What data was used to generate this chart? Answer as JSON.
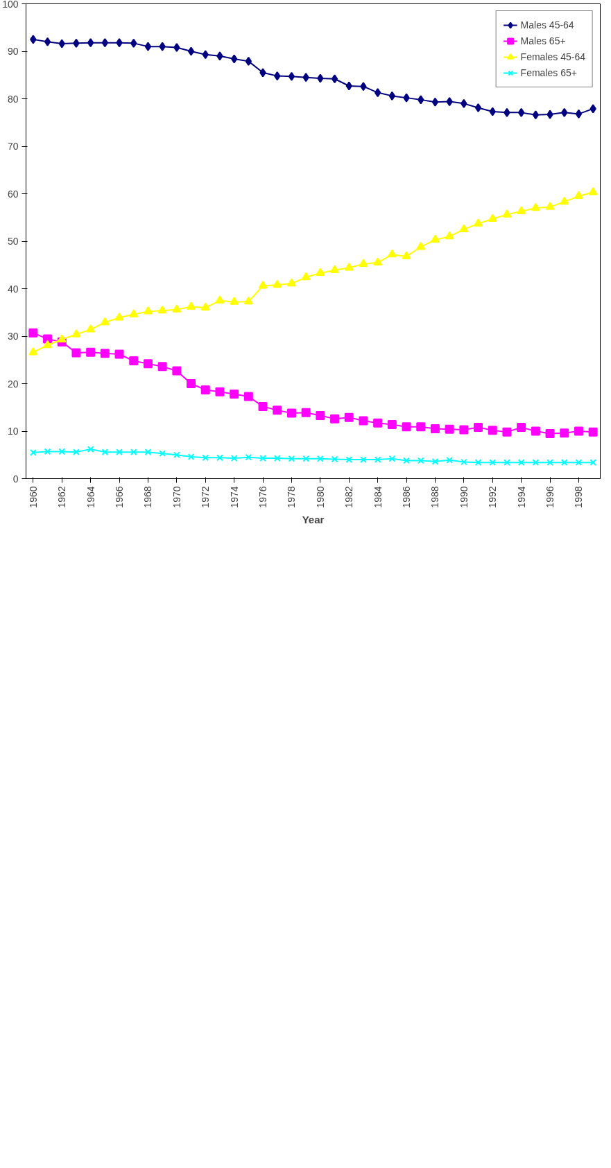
{
  "chart_data": {
    "type": "line",
    "xlabel": "Year",
    "x": [
      1960,
      1961,
      1962,
      1963,
      1964,
      1965,
      1966,
      1967,
      1968,
      1969,
      1970,
      1971,
      1972,
      1973,
      1974,
      1975,
      1976,
      1977,
      1978,
      1979,
      1980,
      1981,
      1982,
      1983,
      1984,
      1985,
      1986,
      1987,
      1988,
      1989,
      1990,
      1991,
      1992,
      1993,
      1994,
      1995,
      1996,
      1997,
      1998,
      1999
    ],
    "xlim": [
      1959.5,
      1999.5
    ],
    "xticks": [
      1960,
      1962,
      1964,
      1966,
      1968,
      1970,
      1972,
      1974,
      1976,
      1978,
      1980,
      1982,
      1984,
      1986,
      1988,
      1990,
      1992,
      1994,
      1996,
      1998
    ],
    "ylim": [
      0,
      100
    ],
    "yticks": [
      0,
      10,
      20,
      30,
      40,
      50,
      60,
      70,
      80,
      90,
      100
    ],
    "grid": false,
    "legend": "top right",
    "line_style": "solid",
    "series": [
      {
        "name": "Males 45-64",
        "color": "#000080",
        "marker": "diamond",
        "values": [
          92.5,
          92.0,
          91.6,
          91.7,
          91.8,
          91.8,
          91.8,
          91.7,
          91.0,
          91.0,
          90.8,
          90.0,
          89.3,
          89.0,
          88.4,
          87.9,
          85.5,
          84.8,
          84.7,
          84.5,
          84.3,
          84.2,
          82.7,
          82.6,
          81.3,
          80.6,
          80.2,
          79.8,
          79.3,
          79.4,
          79.0,
          78.1,
          77.3,
          77.1,
          77.1,
          76.6,
          76.7,
          77.1,
          76.8,
          77.9
        ]
      },
      {
        "name": "Males 65+",
        "color": "#ff00ff",
        "marker": "square",
        "values": [
          30.7,
          29.4,
          28.8,
          26.5,
          26.6,
          26.4,
          26.2,
          24.8,
          24.2,
          23.6,
          22.7,
          20.0,
          18.7,
          18.3,
          17.8,
          17.3,
          15.2,
          14.4,
          13.8,
          13.9,
          13.3,
          12.6,
          12.9,
          12.2,
          11.7,
          11.4,
          10.9,
          10.9,
          10.5,
          10.4,
          10.3,
          10.8,
          10.2,
          9.8,
          10.8,
          10.0,
          9.5,
          9.6,
          10.0,
          9.8
        ]
      },
      {
        "name": "Females 45-64",
        "color": "#ffff00",
        "marker": "triangle",
        "values": [
          26.6,
          28.1,
          29.3,
          30.4,
          31.4,
          32.9,
          33.9,
          34.6,
          35.2,
          35.4,
          35.6,
          36.2,
          36.0,
          37.5,
          37.2,
          37.3,
          40.6,
          40.8,
          41.1,
          42.4,
          43.3,
          43.9,
          44.4,
          45.2,
          45.5,
          47.2,
          46.8,
          48.8,
          50.3,
          51.0,
          52.5,
          53.7,
          54.7,
          55.6,
          56.3,
          57.0,
          57.2,
          58.3,
          59.5,
          60.3
        ]
      },
      {
        "name": "Females 65+",
        "color": "#00ffff",
        "marker": "cross",
        "values": [
          5.5,
          5.7,
          5.7,
          5.6,
          6.2,
          5.6,
          5.6,
          5.6,
          5.6,
          5.3,
          5.0,
          4.6,
          4.4,
          4.4,
          4.3,
          4.5,
          4.3,
          4.3,
          4.2,
          4.2,
          4.2,
          4.1,
          4.0,
          4.0,
          4.0,
          4.2,
          3.8,
          3.8,
          3.6,
          3.9,
          3.5,
          3.4,
          3.4,
          3.4,
          3.4,
          3.4,
          3.4,
          3.4,
          3.4,
          3.4
        ]
      }
    ]
  }
}
